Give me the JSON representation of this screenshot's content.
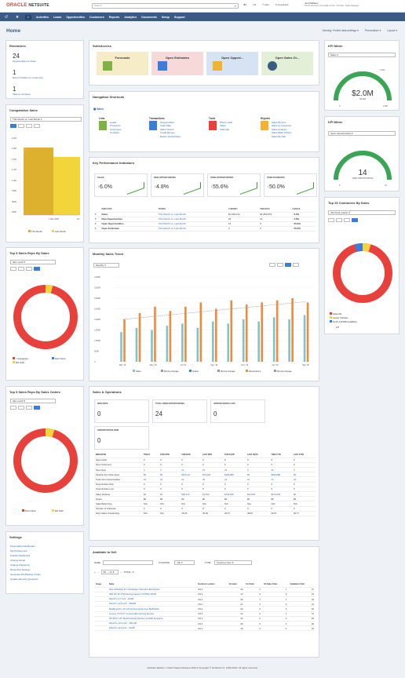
{
  "brand": {
    "oracle": "ORACLE",
    "netsuite": "NETSUITE"
  },
  "search": {
    "placeholder": "Search"
  },
  "top_links": {
    "create": "",
    "recent": "",
    "help": "Help",
    "feedback": "Feedback"
  },
  "user": {
    "name": "Joel Williams",
    "role": "TE PF Premium US-LEH8.2.3.3S - FP Mod - Sales Manager"
  },
  "nav": [
    "Activities",
    "Leads",
    "Opportunities",
    "Customers",
    "Reports",
    "Analytics",
    "Documents",
    "Setup",
    "Support"
  ],
  "page": {
    "title": "Home",
    "view": "Viewing: Portlet data settings",
    "personalize": "Personalize",
    "layout": "Layout"
  },
  "reminders": {
    "title": "Reminders",
    "items": [
      {
        "count": "24",
        "label": "Opportunities to Close"
      },
      {
        "count": "1",
        "label": "Event Invitation to respond to"
      },
      {
        "count": "1",
        "label": "Task to complete"
      }
    ]
  },
  "suiteaccess": {
    "title": "SuiteAccess",
    "tiles": [
      "Forecasts",
      "Open Estimates",
      "Open Opport...",
      "Open Sales Or..."
    ]
  },
  "kpi_meter_1": {
    "title": "KPI Meter",
    "select": "Sales",
    "value": "$2.0M",
    "label": "SALES",
    "min": "0",
    "max": "2.0M",
    "mid": "1.9M"
  },
  "kpi_meter_2": {
    "title": "KPI Meter",
    "select": "Open Opportunities",
    "value": "14",
    "label": "OPEN OPPORTUNITIES",
    "min": "0",
    "max": "14"
  },
  "comparative_sales": {
    "title": "Comparative Sales",
    "select": "This Month vs. Last Month",
    "y_ticks": [
      "2.0M",
      "1.8M",
      "1.5M",
      "1.2M",
      "1.0M",
      "750K",
      "500K",
      "250K",
      "0"
    ],
    "x_ticks": [
      "1 Mar 2020",
      "31"
    ],
    "legend": [
      "This Month",
      "Last Month"
    ]
  },
  "nav_shortcuts": {
    "title": "Navigation Shortcuts",
    "sales_label": "Sales",
    "groups": [
      {
        "title": "Lists",
        "items": [
          "Leads",
          "Prospects",
          "Customers",
          "Contacts"
        ]
      },
      {
        "title": "Transactions",
        "items": [
          "Opportunities",
          "Cash Sale",
          "Sales Orders",
          "Credit Memos",
          "Return Authorizatio..."
        ]
      },
      {
        "title": "Tools",
        "items": [
          "Phone Calls",
          "Tasks",
          "Calendar"
        ]
      },
      {
        "title": "Reports",
        "items": [
          "Sales By Item",
          "Sales by Customer",
          "Sales Analysis",
          "Sales Back Orders",
          "Sales By Rep"
        ]
      }
    ]
  },
  "kpi": {
    "title": "Key Performance Indicators",
    "cards": [
      {
        "label": "SALES",
        "value": "6.0%"
      },
      {
        "label": "NEW OPPORTUNITIES",
        "value": "4.8%"
      },
      {
        "label": "OPEN OPPORTUNITIES",
        "value": "55.6%"
      },
      {
        "label": "OPEN ESTIMATES",
        "value": "50.0%"
      }
    ],
    "headers": [
      "INDICATOR",
      "PERIOD",
      "CURRENT",
      "PREVIOUS",
      "CHANGE"
    ],
    "rows": [
      [
        "Sales",
        "This Month vs. Last Month",
        "$1,964,112",
        "$1,852,870",
        "6.0%"
      ],
      [
        "New Opportunities",
        "This Month vs. Last Month",
        "22",
        "21",
        "4.8%"
      ],
      [
        "Open Opportunities",
        "This Month vs. Last Month",
        "14",
        "9",
        "55.6%"
      ],
      [
        "Open Estimates",
        "This Month vs. Last Month",
        "3",
        "2",
        "50.0%"
      ]
    ]
  },
  "top25": {
    "title": "Top 25 Customers By Sales",
    "select": "this fiscal quarter",
    "legend": [
      "Kalsa ITE",
      "Cooper Software",
      "Smith & MORE Installation"
    ],
    "pager": "1/8"
  },
  "top5_sales": {
    "title": "Top 5 Sales Reps By Sales",
    "select": "this month",
    "legend": [
      "- Unassigned -",
      "Mitt Clark",
      "Ruth Cohen"
    ]
  },
  "monthly_trend": {
    "title": "Monthly Sales Trend",
    "select": "Monthly",
    "y_ticks": [
      "4,000K",
      "3,500K",
      "3,000K",
      "2,500K",
      "2,000K",
      "1,500K",
      "1,000K",
      "500K",
      "0"
    ],
    "x_ticks": [
      "Mar '19",
      "May '19",
      "Jul '19",
      "Sep '19",
      "Nov '19",
      "Jan '20",
      "Mar '20"
    ],
    "legend": [
      "Sales",
      "Moving Average",
      "Orders",
      "Moving Average",
      "Reservations",
      "Moving Average"
    ]
  },
  "top5_orders": {
    "title": "Top 5 Sales Reps By Sales Orders",
    "select": "this month",
    "legend": [
      "Ruth Cohen",
      "Milt Clark"
    ]
  },
  "sales_ops": {
    "title": "Sales & Operations",
    "cards": [
      {
        "label": "NEW OPPS",
        "value": "0"
      },
      {
        "label": "TOTAL OPEN OPPORTUNITIES",
        "value": "24"
      },
      {
        "label": "OPPORTUNITIES LOST",
        "value": "0"
      },
      {
        "label": "OPPORTUNITIES WON",
        "value": "0"
      }
    ],
    "headers": [
      "INDICATOR",
      "TODAY",
      "THIS WTD",
      "THIS MTD",
      "LAST MTD",
      "THIS FQTD",
      "LAST FQTD",
      "THIS FYTD",
      "LAST FYTD"
    ],
    "rows": [
      [
        "New Leads",
        "0",
        "0",
        "0",
        "4",
        "8",
        "0",
        "8",
        "0"
      ],
      [
        "New Customers",
        "0",
        "0",
        "0",
        "0",
        "0",
        "0",
        "0",
        "0"
      ],
      [
        "New Opps",
        "0",
        "0",
        "22",
        "14",
        "42",
        "0",
        "43",
        "0"
      ],
      [
        "Pipeline from New Opps",
        "$0",
        "$0",
        "$119,117",
        "$73,220",
        "$195,986",
        "$0",
        "$199,985",
        "$0"
      ],
      [
        "Total Open Opportunities",
        "24",
        "24",
        "24",
        "24",
        "24",
        "24",
        "24",
        "24"
      ],
      [
        "Opportunities Won",
        "0",
        "0",
        "0",
        "0",
        "0",
        "0",
        "0",
        "0"
      ],
      [
        "Opportunities Lost",
        "0",
        "0",
        "0",
        "0",
        "0",
        "0",
        "0",
        "0"
      ],
      [
        "Sales (Orders)",
        "$0",
        "$0",
        "$39,379",
        "$1,150",
        "$144,635",
        "$43,663",
        "$144,635",
        "$0"
      ],
      [
        "Quota",
        "$0",
        "$0",
        "$0",
        "$0",
        "$0",
        "$0",
        "$0",
        "$0"
      ],
      [
        "Sales/Sales Rep",
        "N/A",
        "N/A",
        "N/A",
        "N/A",
        "N/A",
        "N/A",
        "N/A",
        "N/A"
      ],
      [
        "Number of Channels",
        "0",
        "0",
        "0",
        "0",
        "0",
        "0",
        "0",
        "0"
      ],
      [
        "Days Sales Outstanding",
        "N/A",
        "N/A",
        "35.26",
        "40.06",
        "40.07",
        "48.87",
        "40.07",
        "26.77"
      ]
    ]
  },
  "settings": {
    "title": "Settings",
    "items": [
      "Personalize Dashboard",
      "Set Preferences",
      "Publish Dashboard",
      "Change Email",
      "Change Password",
      "Reset 2FA Settings",
      "Generate 2FA Backup Codes",
      "Update Security Questions"
    ]
  },
  "available": {
    "title": "Available to Sell",
    "name_label": "NAME",
    "location_label": "LOCATION",
    "location_value": "-All-",
    "type_label": "TYPE",
    "type_value": "Inventory Item",
    "page_select": "96 — 31",
    "total_label": "TOTAL: 9",
    "headers": [
      "Image",
      "Name",
      "Inventory Location",
      "On Hand",
      "On Order",
      "On Sales Order",
      "Available to Sell"
    ],
    "rows": [
      [
        "Dell UP3216Q 32\" UltraSharp Ultra HD LED Monitor",
        "US-1",
        "39",
        "2",
        "1",
        "37"
      ],
      [
        "IMS GP-52 1TB Gaming Laptop i7-9750H 16GB",
        "US-1",
        "13",
        "0",
        "0",
        "13"
      ],
      [
        "iPad Pro 9.7 inch - 32GB",
        "US-1",
        "35",
        "1",
        "1",
        "34"
      ],
      [
        "iPad Pro 12.9 inch - 256GB",
        "US-1",
        "21",
        "0",
        "0",
        "21"
      ],
      [
        "MacBook Pro 15 inch Retina Quad-Core 8GB RAM",
        "US-1",
        "32",
        "0",
        "0",
        "32"
      ],
      [
        "Lenovo Y27f 27\" Curved LED Gaming Monitor",
        "US-1",
        "12",
        "0",
        "1",
        "11"
      ],
      [
        "HP ENVY 32\" Media Display Monitor w/ AMD FreeSync",
        "US-1",
        "40",
        "0",
        "0",
        "40"
      ],
      [
        "iPad Pro 10.5 inch - 256 GB",
        "US-1",
        "26",
        "0",
        "0",
        "26"
      ],
      [
        "iPad Pro 12.9 inch - 64GB",
        "US-1",
        "19",
        "0",
        "0",
        "19"
      ]
    ]
  },
  "footer": "NetSuite (Edition: United States) Release 2019.2 Copyright © NetSuite Inc. 1999-2020. All rights reserved."
}
